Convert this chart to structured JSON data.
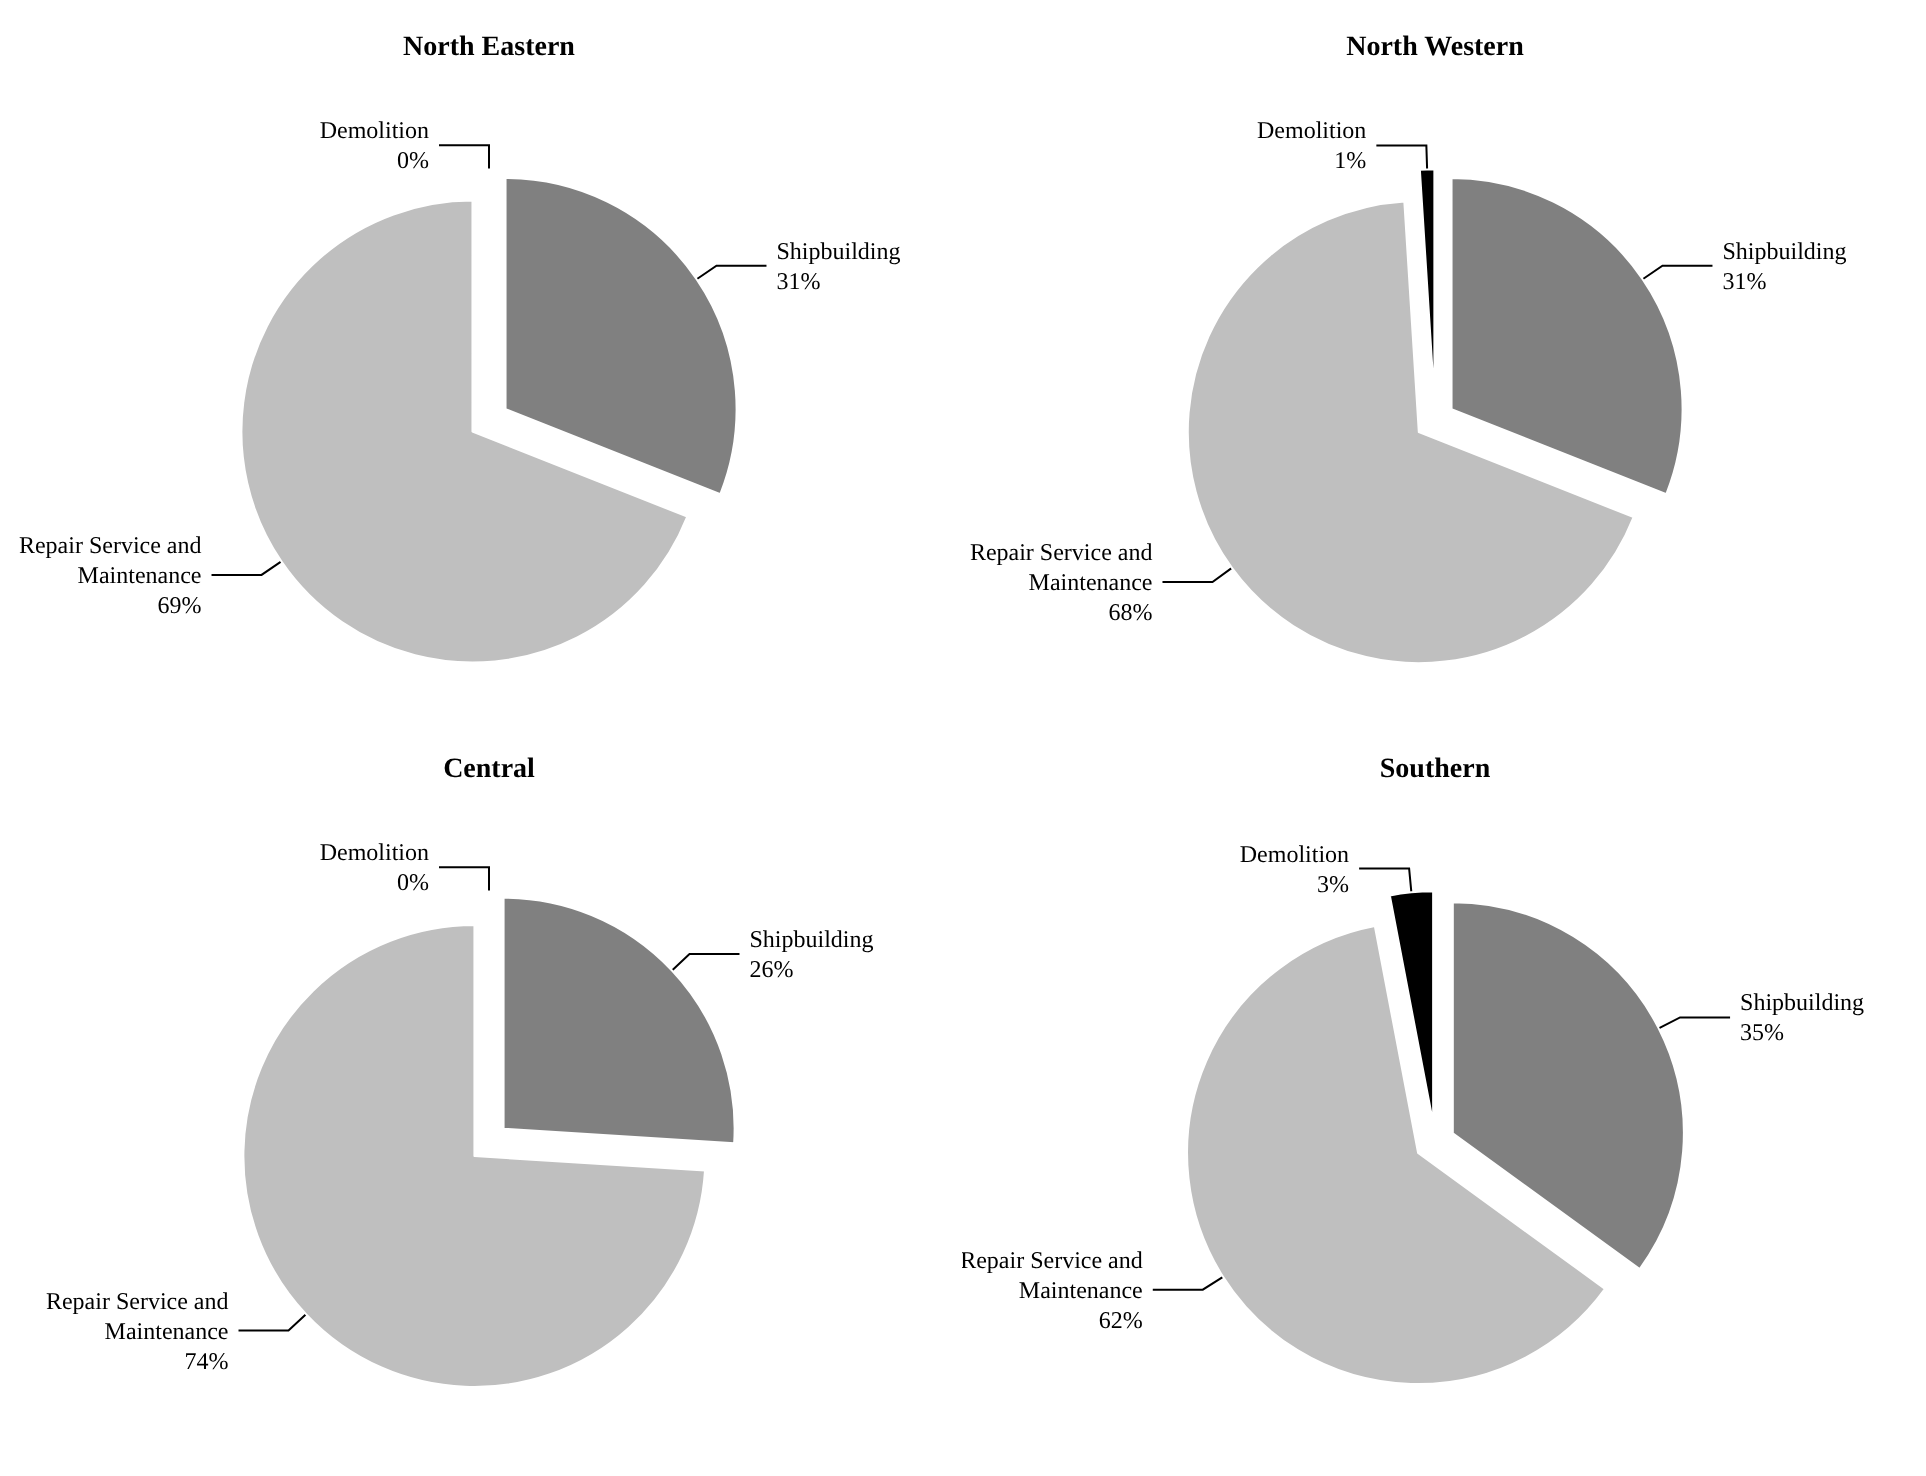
{
  "chart_data": [
    {
      "type": "pie",
      "title": "North Eastern",
      "categories": [
        "Shipbuilding",
        "Repair Service and Maintenance",
        "Demolition"
      ],
      "values": [
        31,
        69,
        0
      ],
      "value_labels": [
        "31%",
        "69%",
        "0%"
      ],
      "colors": [
        "#808080",
        "#bfbfbf",
        "#000000"
      ]
    },
    {
      "type": "pie",
      "title": "North Western",
      "categories": [
        "Shipbuilding",
        "Repair Service and Maintenance",
        "Demolition"
      ],
      "values": [
        31,
        68,
        1
      ],
      "value_labels": [
        "31%",
        "68%",
        "1%"
      ],
      "colors": [
        "#808080",
        "#bfbfbf",
        "#000000"
      ]
    },
    {
      "type": "pie",
      "title": "Central",
      "categories": [
        "Shipbuilding",
        "Repair Service and Maintenance",
        "Demolition"
      ],
      "values": [
        26,
        74,
        0
      ],
      "value_labels": [
        "26%",
        "74%",
        "0%"
      ],
      "colors": [
        "#808080",
        "#bfbfbf",
        "#000000"
      ]
    },
    {
      "type": "pie",
      "title": "Southern",
      "categories": [
        "Shipbuilding",
        "Repair Service and Maintenance",
        "Demolition"
      ],
      "values": [
        35,
        62,
        3
      ],
      "value_labels": [
        "35%",
        "62%",
        "3%"
      ],
      "colors": [
        "#808080",
        "#bfbfbf",
        "#000000"
      ]
    }
  ]
}
